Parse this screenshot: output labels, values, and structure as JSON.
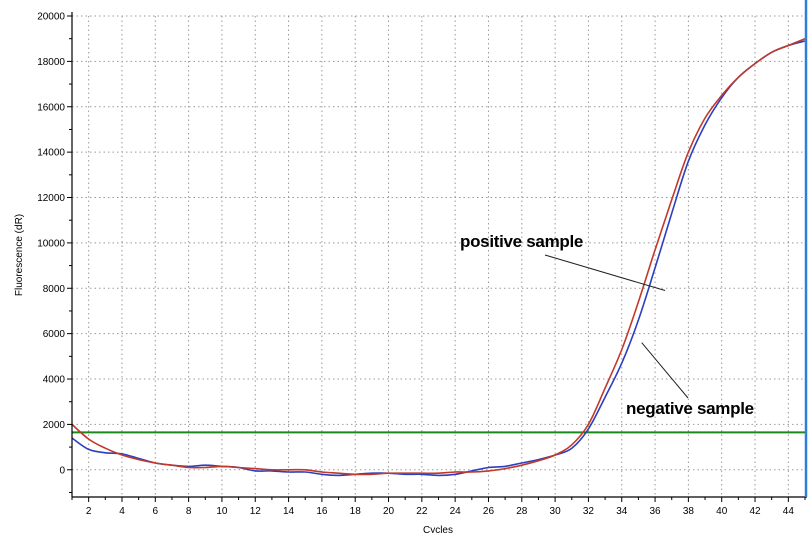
{
  "chart_data": {
    "type": "line",
    "title": "",
    "xlabel": "Cycles",
    "ylabel": "Fluorescence (dR)",
    "xlim": [
      1,
      45
    ],
    "ylim": [
      -1200,
      20000
    ],
    "xticks": [
      2,
      4,
      6,
      8,
      10,
      12,
      14,
      16,
      18,
      20,
      22,
      24,
      26,
      28,
      30,
      32,
      34,
      36,
      38,
      40,
      42,
      44
    ],
    "yticks": [
      0,
      2000,
      4000,
      6000,
      8000,
      10000,
      12000,
      14000,
      16000,
      18000,
      20000
    ],
    "grid": true,
    "threshold": {
      "y": 1650,
      "color": "#1a8a1a"
    },
    "series": [
      {
        "key": "positive",
        "color": "#c0392b",
        "x": [
          1,
          2,
          3,
          4,
          5,
          6,
          7,
          8,
          9,
          10,
          11,
          12,
          13,
          14,
          15,
          16,
          17,
          18,
          19,
          20,
          21,
          22,
          23,
          24,
          25,
          26,
          27,
          28,
          29,
          30,
          31,
          32,
          33,
          34,
          35,
          36,
          37,
          38,
          39,
          40,
          41,
          42,
          43,
          44,
          45
        ],
        "y": [
          2000,
          1350,
          950,
          650,
          450,
          300,
          200,
          100,
          100,
          150,
          100,
          50,
          0,
          0,
          0,
          -100,
          -150,
          -200,
          -200,
          -150,
          -150,
          -150,
          -150,
          -100,
          -100,
          -50,
          50,
          200,
          400,
          650,
          1100,
          2000,
          3600,
          5300,
          7400,
          9700,
          11900,
          14000,
          15500,
          16500,
          17300,
          17900,
          18400,
          18700,
          19000
        ]
      },
      {
        "key": "negative",
        "color": "#2b3fbf",
        "x": [
          1,
          2,
          3,
          4,
          5,
          6,
          7,
          8,
          9,
          10,
          11,
          12,
          13,
          14,
          15,
          16,
          17,
          18,
          19,
          20,
          21,
          22,
          23,
          24,
          25,
          26,
          27,
          28,
          29,
          30,
          31,
          32,
          33,
          34,
          35,
          36,
          37,
          38,
          39,
          40,
          41,
          42,
          43,
          44,
          45
        ],
        "y": [
          1400,
          900,
          750,
          700,
          500,
          300,
          200,
          150,
          200,
          150,
          100,
          -50,
          -50,
          -100,
          -100,
          -200,
          -250,
          -200,
          -150,
          -150,
          -200,
          -200,
          -250,
          -200,
          -50,
          100,
          150,
          300,
          450,
          650,
          950,
          1800,
          3200,
          4700,
          6600,
          8900,
          11300,
          13600,
          15200,
          16400,
          17300,
          17900,
          18400,
          18700,
          18900
        ]
      }
    ],
    "annotations": [
      {
        "key": "positive",
        "text": "positive sample",
        "target_x": 36.6,
        "target_y": 7900
      },
      {
        "key": "negative",
        "text": "negative sample",
        "target_x": 35.2,
        "target_y": 5600
      }
    ]
  }
}
